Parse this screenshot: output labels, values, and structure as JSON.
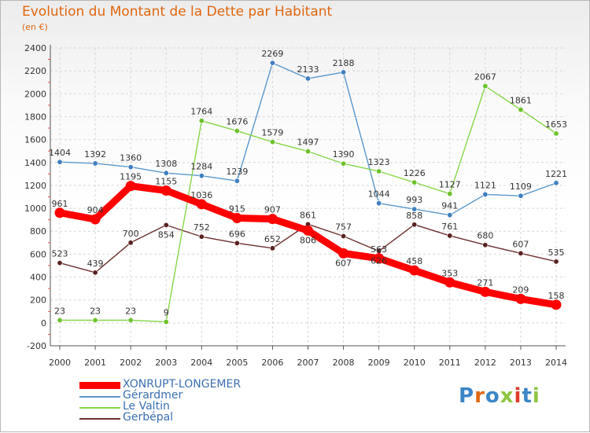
{
  "title": "Evolution du Montant de la Dette par Habitant",
  "subtitle": "(en €)",
  "logo": "Proxiti",
  "colors": {
    "title": "#e0670f",
    "grid": "#d7d7d7",
    "axis": "#555555"
  },
  "chart_data": {
    "type": "line",
    "x": [
      "2000",
      "2001",
      "2002",
      "2003",
      "2004",
      "2005",
      "2006",
      "2007",
      "2008",
      "2009",
      "2010",
      "2011",
      "2012",
      "2013",
      "2014"
    ],
    "ylim": [
      -200,
      2400
    ],
    "yticks": [
      -200,
      0,
      200,
      400,
      600,
      800,
      1000,
      1200,
      1400,
      1600,
      1800,
      2000,
      2200,
      2400
    ],
    "grid": true,
    "legend_position": "bottom-left",
    "series": [
      {
        "name": "Gerbépal",
        "color": "#6e2f2f",
        "marker": "#5a2121",
        "values": [
          523,
          439,
          700,
          854,
          752,
          696,
          652,
          861,
          757,
          626,
          858,
          761,
          680,
          607,
          535
        ]
      },
      {
        "name": "Gérardmer",
        "color": "#5a98cc",
        "marker": "#3f7fbf",
        "values": [
          1404,
          1392,
          1360,
          1308,
          1284,
          1239,
          2269,
          2133,
          2188,
          1044,
          993,
          941,
          1121,
          1109,
          1221
        ]
      },
      {
        "name": "Le Valtin",
        "color": "#86d648",
        "marker": "#6cc22a",
        "values": [
          23,
          23,
          23,
          9,
          1764,
          1676,
          1579,
          1497,
          1390,
          1323,
          1226,
          1127,
          2067,
          1861,
          1653
        ]
      },
      {
        "name": "XONRUPT-LONGEMER",
        "color": "#ff0000",
        "marker": "#ff0000",
        "values": [
          961,
          904,
          1195,
          1155,
          1036,
          915,
          907,
          806,
          607,
          563,
          458,
          353,
          271,
          209,
          158
        ]
      }
    ],
    "legend": [
      "XONRUPT-LONGEMER",
      "Gérardmer",
      "Le Valtin",
      "Gerbépal"
    ]
  }
}
